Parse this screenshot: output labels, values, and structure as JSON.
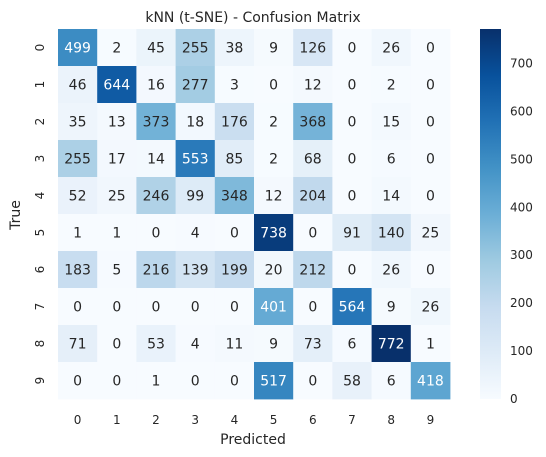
{
  "chart_data": {
    "type": "heatmap",
    "title": "kNN (t-SNE) - Confusion Matrix",
    "xlabel": "Predicted",
    "ylabel": "True",
    "x_categories": [
      "0",
      "1",
      "2",
      "3",
      "4",
      "5",
      "6",
      "7",
      "8",
      "9"
    ],
    "y_categories": [
      "0",
      "1",
      "2",
      "3",
      "4",
      "5",
      "6",
      "7",
      "8",
      "9"
    ],
    "values": [
      [
        499,
        2,
        45,
        255,
        38,
        9,
        126,
        0,
        26,
        0
      ],
      [
        46,
        644,
        16,
        277,
        3,
        0,
        12,
        0,
        2,
        0
      ],
      [
        35,
        13,
        373,
        18,
        176,
        2,
        368,
        0,
        15,
        0
      ],
      [
        255,
        17,
        14,
        553,
        85,
        2,
        68,
        0,
        6,
        0
      ],
      [
        52,
        25,
        246,
        99,
        348,
        12,
        204,
        0,
        14,
        0
      ],
      [
        1,
        1,
        0,
        4,
        0,
        738,
        0,
        91,
        140,
        25
      ],
      [
        183,
        5,
        216,
        139,
        199,
        20,
        212,
        0,
        26,
        0
      ],
      [
        0,
        0,
        0,
        0,
        0,
        401,
        0,
        564,
        9,
        26
      ],
      [
        71,
        0,
        53,
        4,
        11,
        9,
        73,
        6,
        772,
        1
      ],
      [
        0,
        0,
        1,
        0,
        0,
        517,
        0,
        58,
        6,
        418
      ]
    ],
    "colormap": "Blues",
    "colorbar": {
      "range": [
        0,
        772
      ],
      "ticks": [
        0,
        100,
        200,
        300,
        400,
        500,
        600,
        700
      ]
    },
    "annotations": "cell counts",
    "grid": false
  }
}
